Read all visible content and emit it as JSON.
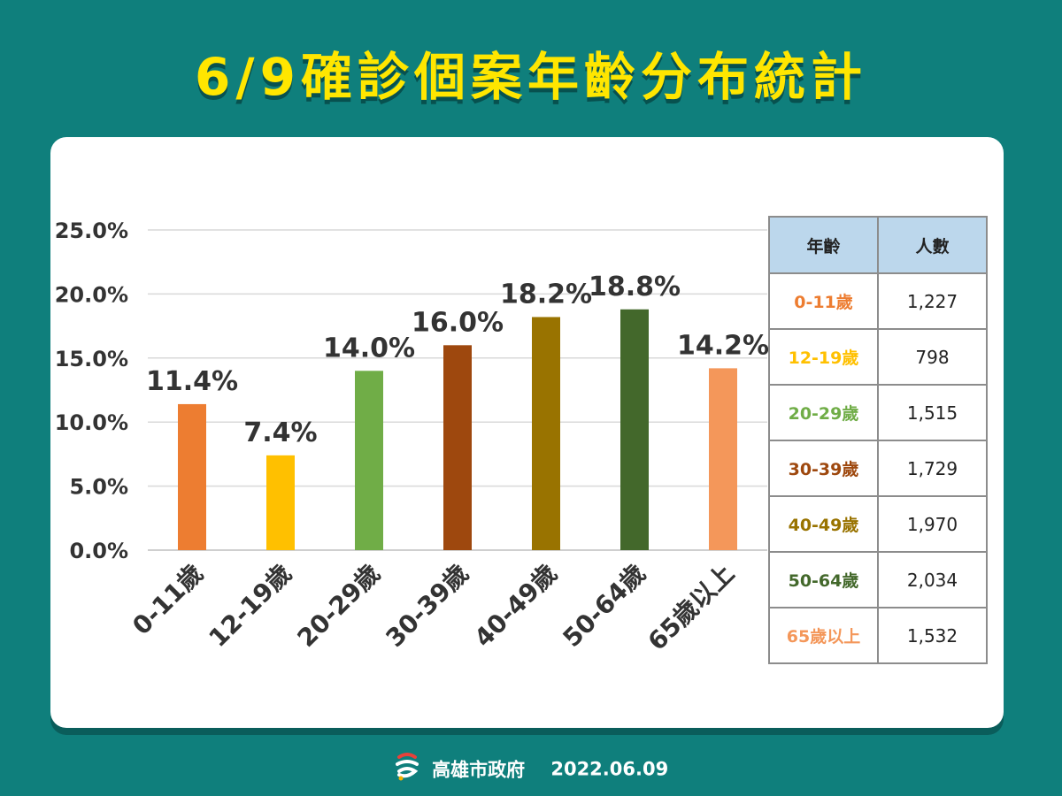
{
  "title": "6/9確診個案年齡分布統計",
  "colors": {
    "background": "#0f7f7c",
    "title": "#ffe600",
    "card": "#ffffff",
    "table_header": "#bcd7ec",
    "grid": "#d9d9d9",
    "label_text": "#333333"
  },
  "chart_data": {
    "type": "bar",
    "categories": [
      "0-11歲",
      "12-19歲",
      "20-29歲",
      "30-39歲",
      "40-49歲",
      "50-64歲",
      "65歲以上"
    ],
    "values": [
      11.4,
      7.4,
      14.0,
      16.0,
      18.2,
      18.8,
      14.2
    ],
    "data_labels": [
      "11.4%",
      "7.4%",
      "14.0%",
      "16.0%",
      "18.2%",
      "18.8%",
      "14.2%"
    ],
    "bar_colors": [
      "#ed7d31",
      "#ffc000",
      "#70ad47",
      "#9e480e",
      "#997300",
      "#43682b",
      "#f4975a"
    ],
    "ylim": [
      0,
      25
    ],
    "yticks": [
      0,
      5,
      10,
      15,
      20,
      25
    ],
    "ytick_labels": [
      "0.0%",
      "5.0%",
      "10.0%",
      "15.0%",
      "20.0%",
      "25.0%"
    ],
    "grid": true,
    "xlabel": "",
    "ylabel": ""
  },
  "table": {
    "headers": [
      "年齡",
      "人數"
    ],
    "rows": [
      {
        "age": "0-11歲",
        "count": "1,227",
        "color": "#ed7d31"
      },
      {
        "age": "12-19歲",
        "count": "798",
        "color": "#ffc000"
      },
      {
        "age": "20-29歲",
        "count": "1,515",
        "color": "#70ad47"
      },
      {
        "age": "30-39歲",
        "count": "1,729",
        "color": "#9e480e"
      },
      {
        "age": "40-49歲",
        "count": "1,970",
        "color": "#997300"
      },
      {
        "age": "50-64歲",
        "count": "2,034",
        "color": "#43682b"
      },
      {
        "age": "65歲以上",
        "count": "1,532",
        "color": "#f4975a"
      }
    ]
  },
  "footer": {
    "org": "高雄市政府",
    "date": "2022.06.09",
    "logo_icon": "kaohsiung-city-logo"
  }
}
